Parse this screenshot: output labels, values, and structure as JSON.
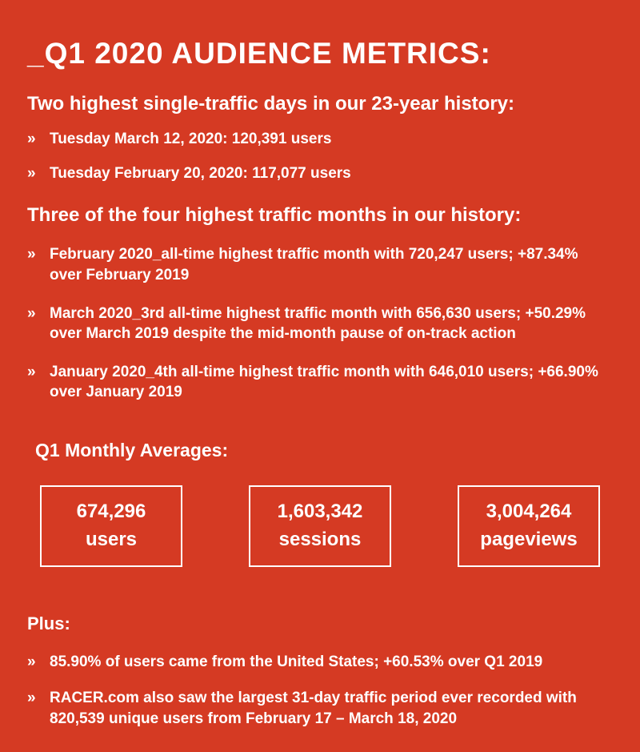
{
  "page": {
    "title": "_Q1 2020 AUDIENCE METRICS:",
    "background_color": "#d53a23",
    "text_color": "#ffffff",
    "bullet_marker": "»"
  },
  "sections": [
    {
      "heading": "Two highest single-traffic days in our 23-year history:",
      "bullets": [
        "Tuesday March 12, 2020: 120,391 users",
        "Tuesday February 20, 2020: 117,077 users"
      ]
    },
    {
      "heading": "Three of the four highest traffic months in our history:",
      "bullets": [
        "February 2020_all-time highest traffic month with 720,247 users; +87.34% over February 2019",
        "March 2020_3rd all-time highest traffic month with 656,630 users; +50.29% over March 2019 despite the mid-month pause of on-track action",
        "January 2020_4th all-time highest traffic month with 646,010 users; +66.90% over January 2019"
      ]
    }
  ],
  "averages": {
    "heading": "Q1 Monthly Averages:",
    "stats": [
      {
        "value": "674,296",
        "label": "users"
      },
      {
        "value": "1,603,342",
        "label": "sessions"
      },
      {
        "value": "3,004,264",
        "label": "pageviews"
      }
    ]
  },
  "plus": {
    "heading": "Plus:",
    "bullets": [
      "85.90% of users came from the United States; +60.53% over Q1 2019",
      "RACER.com also saw the largest 31-day traffic period ever recorded with 820,539 unique users from February 17 – March 18, 2020"
    ]
  }
}
